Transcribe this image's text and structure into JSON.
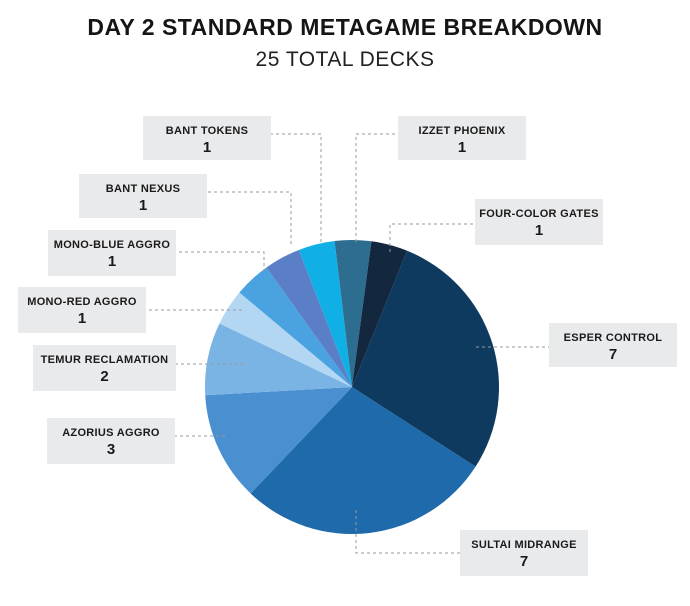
{
  "chart_data": {
    "type": "pie",
    "title": "DAY 2 STANDARD METAGAME BREAKDOWN",
    "subtitle": "25 TOTAL DECKS",
    "slices": [
      {
        "label": "ESPER CONTROL",
        "value": 7,
        "color": "#0e3a5f"
      },
      {
        "label": "SULTAI MIDRANGE",
        "value": 7,
        "color": "#1e6aaa"
      },
      {
        "label": "AZORIUS AGGRO",
        "value": 3,
        "color": "#4a90d0"
      },
      {
        "label": "TEMUR RECLAMATION",
        "value": 2,
        "color": "#7ab4e4"
      },
      {
        "label": "MONO-RED AGGRO",
        "value": 1,
        "color": "#b3d7f2"
      },
      {
        "label": "MONO-BLUE AGGRO",
        "value": 1,
        "color": "#4aa3e0"
      },
      {
        "label": "BANT NEXUS",
        "value": 1,
        "color": "#5b7fc7"
      },
      {
        "label": "BANT TOKENS",
        "value": 1,
        "color": "#10b0e6"
      },
      {
        "label": "IZZET PHOENIX",
        "value": 1,
        "color": "#2d6d8f"
      },
      {
        "label": "FOUR-COLOR GATES",
        "value": 1,
        "color": "#13273e"
      }
    ]
  }
}
